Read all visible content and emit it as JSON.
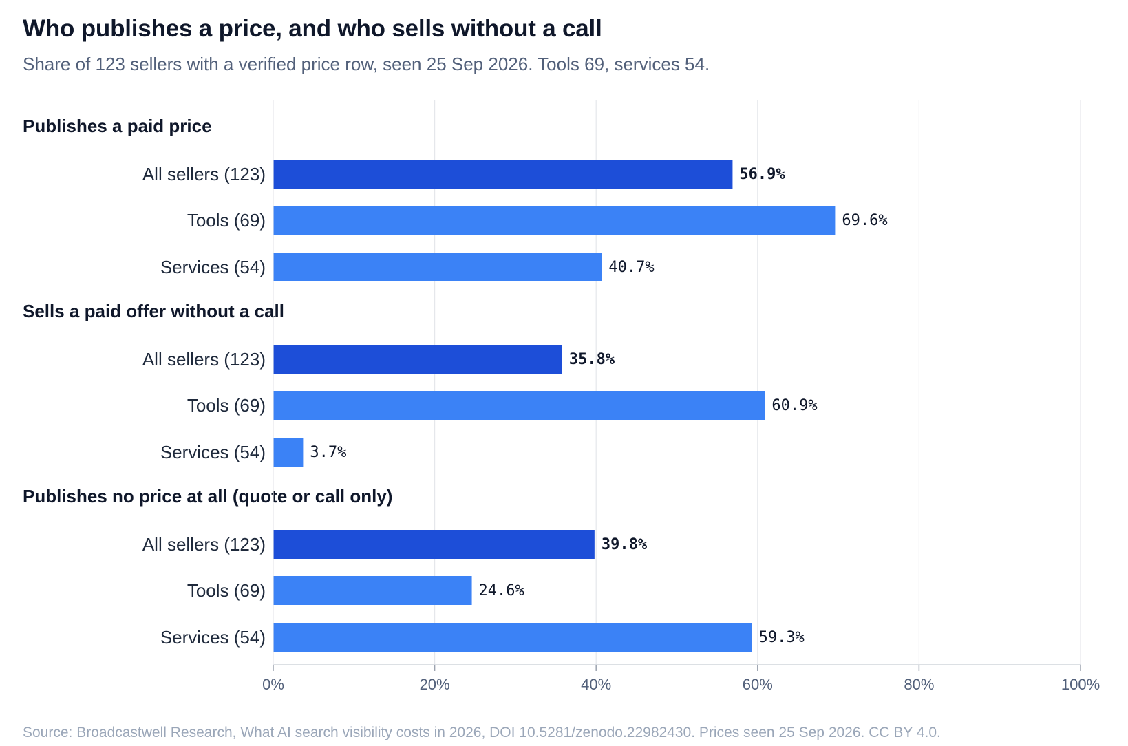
{
  "title": "Who publishes a price, and who sells without a call",
  "subtitle": "Share of 123 sellers with a verified price row, seen 25 Sep 2026. Tools 69, services 54.",
  "source": "Source: Broadcastwell Research, What AI search visibility costs in 2026, DOI 10.5281/zenodo.22982430. Prices seen 25 Sep 2026. CC BY 4.0.",
  "colors": {
    "all_sellers": "#1d4ed8",
    "segment": "#3b82f6",
    "grid": "#e5e7eb",
    "axis": "#d1d5db"
  },
  "chart_data": {
    "type": "bar",
    "orientation": "horizontal",
    "xlim": [
      0,
      100
    ],
    "grid": true,
    "ticks": [
      {
        "value": 0,
        "label": "0%"
      },
      {
        "value": 20,
        "label": "20%"
      },
      {
        "value": 40,
        "label": "40%"
      },
      {
        "value": 60,
        "label": "60%"
      },
      {
        "value": 80,
        "label": "80%"
      },
      {
        "value": 100,
        "label": "100%"
      }
    ],
    "groups": [
      {
        "label": "Publishes a paid price",
        "bars": [
          {
            "label": "All sellers (123)",
            "value": 56.9,
            "value_label": "56.9%",
            "emphasis": true
          },
          {
            "label": "Tools (69)",
            "value": 69.6,
            "value_label": "69.6%",
            "emphasis": false
          },
          {
            "label": "Services (54)",
            "value": 40.7,
            "value_label": "40.7%",
            "emphasis": false
          }
        ]
      },
      {
        "label": "Sells a paid offer without a call",
        "bars": [
          {
            "label": "All sellers (123)",
            "value": 35.8,
            "value_label": "35.8%",
            "emphasis": true
          },
          {
            "label": "Tools (69)",
            "value": 60.9,
            "value_label": "60.9%",
            "emphasis": false
          },
          {
            "label": "Services (54)",
            "value": 3.7,
            "value_label": "3.7%",
            "emphasis": false
          }
        ]
      },
      {
        "label": "Publishes no price at all (quote or call only)",
        "bars": [
          {
            "label": "All sellers (123)",
            "value": 39.8,
            "value_label": "39.8%",
            "emphasis": true
          },
          {
            "label": "Tools (69)",
            "value": 24.6,
            "value_label": "24.6%",
            "emphasis": false
          },
          {
            "label": "Services (54)",
            "value": 59.3,
            "value_label": "59.3%",
            "emphasis": false
          }
        ]
      }
    ]
  }
}
